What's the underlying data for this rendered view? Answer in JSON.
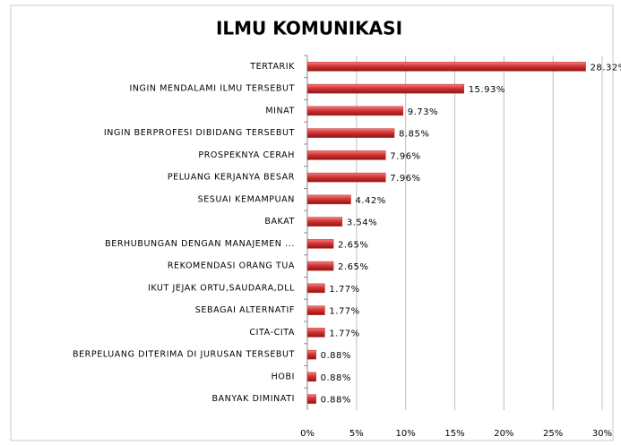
{
  "chart_data": {
    "type": "bar",
    "orientation": "horizontal",
    "title": "ILMU KOMUNIKASI",
    "categories": [
      "TERTARIK",
      "INGIN MENDALAMI ILMU TERSEBUT",
      "MINAT",
      "INGIN BERPROFESI DIBIDANG TERSEBUT",
      "PROSPEKNYA CERAH",
      "PELUANG KERJANYA BESAR",
      "SESUAI KEMAMPUAN",
      "BAKAT",
      "BERHUBUNGAN DENGAN MANAJEMEN ...",
      "REKOMENDASI ORANG TUA",
      "IKUT JEJAK ORTU,SAUDARA,DLL",
      "SEBAGAI ALTERNATIF",
      "CITA-CITA",
      "BERPELUANG DITERIMA DI JURUSAN TERSEBUT",
      "HOBI",
      "BANYAK DIMINATI"
    ],
    "values": [
      28.32,
      15.93,
      9.73,
      8.85,
      7.96,
      7.96,
      4.42,
      3.54,
      2.65,
      2.65,
      1.77,
      1.77,
      1.77,
      0.88,
      0.88,
      0.88
    ],
    "value_labels": [
      "28.32%",
      "15.93%",
      "9.73%",
      "8.85%",
      "7.96%",
      "7.96%",
      "4.42%",
      "3.54%",
      "2.65%",
      "2.65%",
      "1.77%",
      "1.77%",
      "1.77%",
      "0.88%",
      "0.88%",
      "0.88%"
    ],
    "color": "#c62a2a",
    "xlim": [
      0,
      30
    ],
    "xticks": [
      {
        "value": 0,
        "label": "0%"
      },
      {
        "value": 5,
        "label": "5%"
      },
      {
        "value": 10,
        "label": "10%"
      },
      {
        "value": 15,
        "label": "15%"
      },
      {
        "value": 20,
        "label": "20%"
      },
      {
        "value": 25,
        "label": "25%"
      },
      {
        "value": 30,
        "label": "30%"
      }
    ],
    "grid": true
  }
}
